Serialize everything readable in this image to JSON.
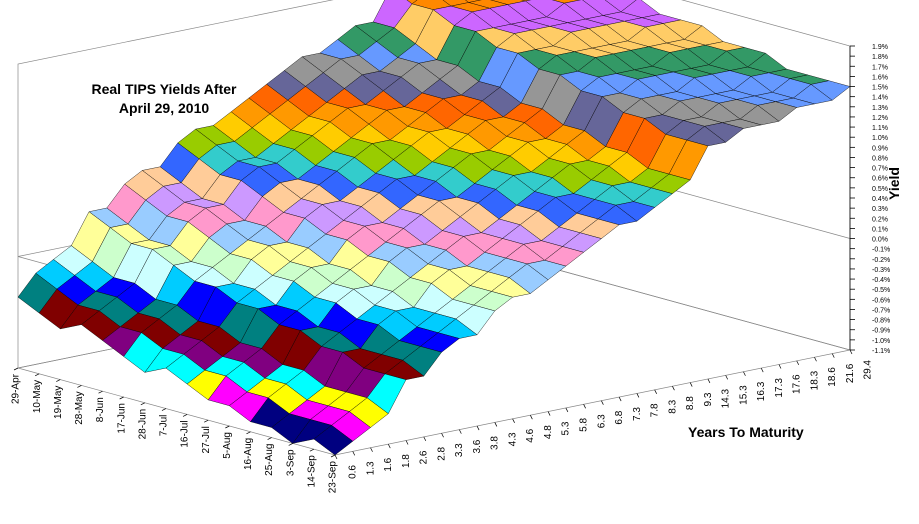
{
  "chart_data": {
    "type": "surface",
    "title": "Real TIPS Yields After April 29, 2010",
    "x_label": "Years To Maturity",
    "z_label": "Yield",
    "dates": [
      "29-Apr",
      "10-May",
      "19-May",
      "28-May",
      "8-Jun",
      "17-Jun",
      "28-Jun",
      "7-Jul",
      "16-Jul",
      "27-Jul",
      "5-Aug",
      "16-Aug",
      "25-Aug",
      "3-Sep",
      "14-Sep",
      "23-Sep"
    ],
    "categories": [
      "0.6",
      "1.3",
      "1.6",
      "1.8",
      "2.6",
      "2.8",
      "3.3",
      "3.6",
      "3.8",
      "4.3",
      "4.6",
      "4.8",
      "5.3",
      "5.8",
      "6.3",
      "6.8",
      "7.3",
      "7.8",
      "8.3",
      "8.8",
      "9.3",
      "14.3",
      "15.3",
      "16.3",
      "17.3",
      "17.6",
      "18.3",
      "18.6",
      "21.6",
      "29.4"
    ],
    "zlim": [
      -1.1,
      1.9
    ],
    "zticks": [
      {
        "value": -1.1,
        "label": "-1.1%"
      },
      {
        "value": -1.0,
        "label": "-1.0%"
      },
      {
        "value": -0.9,
        "label": "-0.9%"
      },
      {
        "value": -0.8,
        "label": "-0.8%"
      },
      {
        "value": -0.7,
        "label": "-0.7%"
      },
      {
        "value": -0.6,
        "label": "-0.6%"
      },
      {
        "value": -0.5,
        "label": "-0.5%"
      },
      {
        "value": -0.4,
        "label": "-0.4%"
      },
      {
        "value": -0.3,
        "label": "-0.3%"
      },
      {
        "value": -0.2,
        "label": "-0.2%"
      },
      {
        "value": -0.1,
        "label": "-0.1%"
      },
      {
        "value": 0.0,
        "label": "0.0%"
      },
      {
        "value": 0.1,
        "label": "0.1%"
      },
      {
        "value": 0.2,
        "label": "0.2%"
      },
      {
        "value": 0.3,
        "label": "0.3%"
      },
      {
        "value": 0.4,
        "label": "0.4%"
      },
      {
        "value": 0.5,
        "label": "0.5%"
      },
      {
        "value": 0.6,
        "label": "0.6%"
      },
      {
        "value": 0.7,
        "label": "0.7%"
      },
      {
        "value": 0.8,
        "label": "0.8%"
      },
      {
        "value": 0.9,
        "label": "0.9%"
      },
      {
        "value": 1.0,
        "label": "1.0%"
      },
      {
        "value": 1.1,
        "label": "1.1%"
      },
      {
        "value": 1.2,
        "label": "1.2%"
      },
      {
        "value": 1.3,
        "label": "1.3%"
      },
      {
        "value": 1.4,
        "label": "1.4%"
      },
      {
        "value": 1.5,
        "label": "1.5%"
      },
      {
        "value": 1.6,
        "label": "1.6%"
      },
      {
        "value": 1.7,
        "label": "1.7%"
      },
      {
        "value": 1.8,
        "label": "1.8%"
      },
      {
        "value": 1.9,
        "label": "1.9%"
      }
    ],
    "band_colors": [
      "#ccccff",
      "#000080",
      "#ff00ff",
      "#ffff00",
      "#00ffff",
      "#800080",
      "#800000",
      "#008080",
      "#0000ff",
      "#00ccff",
      "#ccffff",
      "#ccffcc",
      "#ffff99",
      "#99ccff",
      "#ff99cc",
      "#cc99ff",
      "#ffcc99",
      "#3366ff",
      "#33cccc",
      "#99cc00",
      "#ffcc00",
      "#ff9900",
      "#ff6600",
      "#666699",
      "#969696",
      "#6699ff",
      "#339966",
      "#ffcc66",
      "#cc66ff",
      "#ff8800"
    ],
    "series": [
      {
        "name": "29-Apr",
        "values": [
          -0.4,
          -0.2,
          -0.1,
          0.0,
          0.3,
          0.3,
          0.5,
          0.6,
          0.6,
          0.8,
          0.9,
          0.9,
          1.0,
          1.1,
          1.2,
          1.3,
          1.4,
          1.4,
          1.5,
          1.6,
          1.6,
          1.9,
          1.9,
          1.9,
          1.9,
          1.9,
          1.9,
          1.9,
          1.9,
          1.9
        ]
      },
      {
        "name": "10-May",
        "values": [
          -0.5,
          -0.3,
          -0.2,
          -0.1,
          0.2,
          0.2,
          0.4,
          0.5,
          0.5,
          0.7,
          0.8,
          0.8,
          0.9,
          1.0,
          1.1,
          1.2,
          1.3,
          1.4,
          1.4,
          1.5,
          1.6,
          1.8,
          1.9,
          1.9,
          1.9,
          1.9,
          1.9,
          1.9,
          1.9,
          1.9
        ]
      },
      {
        "name": "19-May",
        "values": [
          -0.6,
          -0.4,
          -0.3,
          -0.2,
          0.1,
          0.1,
          0.3,
          0.4,
          0.4,
          0.6,
          0.7,
          0.7,
          0.8,
          0.9,
          1.0,
          1.1,
          1.2,
          1.3,
          1.3,
          1.4,
          1.5,
          1.8,
          1.8,
          1.8,
          1.8,
          1.8,
          1.8,
          1.8,
          1.8,
          1.8
        ]
      },
      {
        "name": "28-May",
        "values": [
          -0.5,
          -0.4,
          -0.3,
          -0.2,
          0.1,
          0.1,
          0.3,
          0.4,
          0.4,
          0.6,
          0.7,
          0.7,
          0.8,
          0.9,
          1.0,
          1.1,
          1.1,
          1.2,
          1.3,
          1.4,
          1.4,
          1.7,
          1.8,
          1.8,
          1.8,
          1.8,
          1.8,
          1.8,
          1.8,
          1.8
        ]
      },
      {
        "name": "8-Jun",
        "values": [
          -0.6,
          -0.5,
          -0.4,
          -0.3,
          0.0,
          0.0,
          0.2,
          0.3,
          0.3,
          0.5,
          0.6,
          0.6,
          0.7,
          0.8,
          0.9,
          1.0,
          1.1,
          1.1,
          1.2,
          1.3,
          1.4,
          1.7,
          1.7,
          1.7,
          1.7,
          1.7,
          1.8,
          1.8,
          1.8,
          1.8
        ]
      },
      {
        "name": "17-Jun",
        "values": [
          -0.7,
          -0.5,
          -0.4,
          -0.3,
          -0.1,
          0.0,
          0.1,
          0.2,
          0.3,
          0.4,
          0.5,
          0.6,
          0.7,
          0.8,
          0.9,
          0.9,
          1.0,
          1.1,
          1.2,
          1.2,
          1.3,
          1.6,
          1.7,
          1.7,
          1.7,
          1.7,
          1.7,
          1.7,
          1.7,
          1.8
        ]
      },
      {
        "name": "28-Jun",
        "values": [
          -0.8,
          -0.6,
          -0.5,
          -0.4,
          -0.1,
          -0.1,
          0.1,
          0.2,
          0.2,
          0.4,
          0.5,
          0.5,
          0.6,
          0.7,
          0.8,
          0.9,
          1.0,
          1.0,
          1.1,
          1.2,
          1.3,
          1.6,
          1.6,
          1.6,
          1.7,
          1.7,
          1.7,
          1.7,
          1.7,
          1.7
        ]
      },
      {
        "name": "7-Jul",
        "values": [
          -0.7,
          -0.6,
          -0.5,
          -0.4,
          -0.2,
          -0.1,
          0.0,
          0.1,
          0.2,
          0.3,
          0.4,
          0.5,
          0.6,
          0.7,
          0.7,
          0.8,
          0.9,
          1.0,
          1.1,
          1.1,
          1.2,
          1.5,
          1.6,
          1.6,
          1.6,
          1.6,
          1.6,
          1.7,
          1.7,
          1.7
        ]
      },
      {
        "name": "16-Jul",
        "values": [
          -0.8,
          -0.7,
          -0.6,
          -0.5,
          -0.2,
          -0.2,
          0.0,
          0.1,
          0.1,
          0.3,
          0.4,
          0.4,
          0.5,
          0.6,
          0.7,
          0.8,
          0.9,
          0.9,
          1.0,
          1.1,
          1.2,
          1.5,
          1.5,
          1.6,
          1.6,
          1.6,
          1.6,
          1.6,
          1.6,
          1.7
        ]
      },
      {
        "name": "27-Jul",
        "values": [
          -0.9,
          -0.7,
          -0.6,
          -0.5,
          -0.3,
          -0.2,
          -0.1,
          0.0,
          0.1,
          0.2,
          0.3,
          0.4,
          0.5,
          0.6,
          0.6,
          0.7,
          0.8,
          0.9,
          1.0,
          1.0,
          1.1,
          1.4,
          1.5,
          1.5,
          1.5,
          1.5,
          1.6,
          1.6,
          1.6,
          1.6
        ]
      },
      {
        "name": "5-Aug",
        "values": [
          -0.9,
          -0.8,
          -0.7,
          -0.6,
          -0.3,
          -0.3,
          -0.1,
          0.0,
          0.0,
          0.2,
          0.3,
          0.3,
          0.4,
          0.5,
          0.6,
          0.7,
          0.8,
          0.8,
          0.9,
          1.0,
          1.1,
          1.4,
          1.4,
          1.5,
          1.5,
          1.5,
          1.5,
          1.5,
          1.6,
          1.6
        ]
      },
      {
        "name": "16-Aug",
        "values": [
          -1.0,
          -0.8,
          -0.7,
          -0.6,
          -0.4,
          -0.3,
          -0.2,
          -0.1,
          0.0,
          0.1,
          0.2,
          0.3,
          0.4,
          0.4,
          0.5,
          0.6,
          0.7,
          0.8,
          0.9,
          0.9,
          1.0,
          1.3,
          1.4,
          1.4,
          1.4,
          1.5,
          1.5,
          1.5,
          1.5,
          1.6
        ]
      },
      {
        "name": "25-Aug",
        "values": [
          -1.0,
          -0.9,
          -0.8,
          -0.7,
          -0.4,
          -0.4,
          -0.2,
          -0.1,
          -0.1,
          0.1,
          0.2,
          0.2,
          0.3,
          0.4,
          0.5,
          0.6,
          0.7,
          0.7,
          0.8,
          0.9,
          1.0,
          1.3,
          1.3,
          1.4,
          1.4,
          1.4,
          1.4,
          1.5,
          1.5,
          1.5
        ]
      },
      {
        "name": "3-Sep",
        "values": [
          -1.1,
          -0.9,
          -0.8,
          -0.7,
          -0.5,
          -0.4,
          -0.3,
          -0.2,
          -0.1,
          0.0,
          0.1,
          0.2,
          0.3,
          0.4,
          0.4,
          0.5,
          0.6,
          0.7,
          0.8,
          0.8,
          0.9,
          1.2,
          1.3,
          1.3,
          1.4,
          1.4,
          1.4,
          1.4,
          1.5,
          1.5
        ]
      },
      {
        "name": "14-Sep",
        "values": [
          -1.0,
          -0.9,
          -0.8,
          -0.7,
          -0.5,
          -0.4,
          -0.3,
          -0.2,
          -0.1,
          0.0,
          0.1,
          0.2,
          0.3,
          0.3,
          0.4,
          0.5,
          0.6,
          0.7,
          0.7,
          0.8,
          0.9,
          1.2,
          1.3,
          1.3,
          1.3,
          1.4,
          1.4,
          1.4,
          1.5,
          1.5
        ]
      },
      {
        "name": "23-Sep",
        "values": [
          -1.1,
          -1.0,
          -0.9,
          -0.8,
          -0.5,
          -0.5,
          -0.3,
          -0.2,
          -0.2,
          0.0,
          0.1,
          0.1,
          0.2,
          0.3,
          0.4,
          0.5,
          0.6,
          0.6,
          0.7,
          0.8,
          0.9,
          1.2,
          1.2,
          1.3,
          1.3,
          1.3,
          1.4,
          1.4,
          1.4,
          1.5
        ]
      }
    ]
  }
}
